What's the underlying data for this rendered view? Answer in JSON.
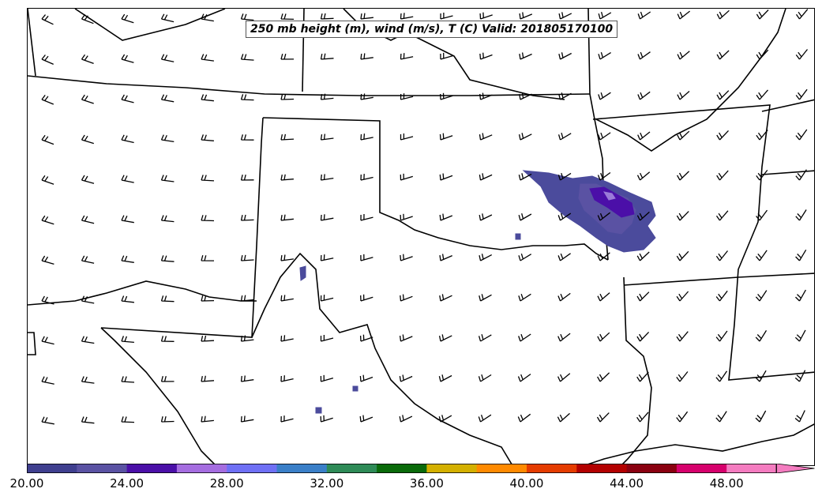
{
  "title": "250 mb height (m), wind (m/s), T (C) Valid: 201805170100",
  "colorbar": {
    "tick_labels": [
      "20.00",
      "24.00",
      "28.00",
      "32.00",
      "36.00",
      "40.00",
      "44.00",
      "48.00"
    ],
    "colors": [
      "#3f3f8f",
      "#5a52a3",
      "#4b0fa8",
      "#a56de0",
      "#6f70f5",
      "#3a7fc8",
      "#2e8b57",
      "#0a6a0a",
      "#d4b000",
      "#ff8a00",
      "#e53c00",
      "#b30000",
      "#8a0010",
      "#d6006c",
      "#f47cc0"
    ],
    "extend": "max"
  },
  "map": {
    "shaded_field_colors": [
      "#4b4b9c",
      "#5a52a3",
      "#4b0fa8",
      "#9a7bd8"
    ],
    "line_color": "#000000"
  }
}
